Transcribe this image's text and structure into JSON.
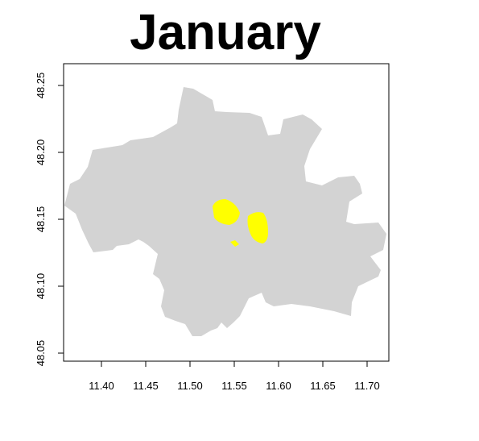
{
  "map": {
    "title": "January",
    "region_color": "#d3d3d3",
    "highlight_color": "#ffff00",
    "x_axis": {
      "range": [
        11.36,
        11.725
      ],
      "ticks": [
        "11.40",
        "11.45",
        "11.50",
        "11.55",
        "11.60",
        "11.65",
        "11.70"
      ]
    },
    "y_axis": {
      "range": [
        48.042,
        48.262
      ],
      "ticks": [
        "48.05",
        "48.10",
        "48.15",
        "48.20",
        "48.25"
      ]
    }
  }
}
